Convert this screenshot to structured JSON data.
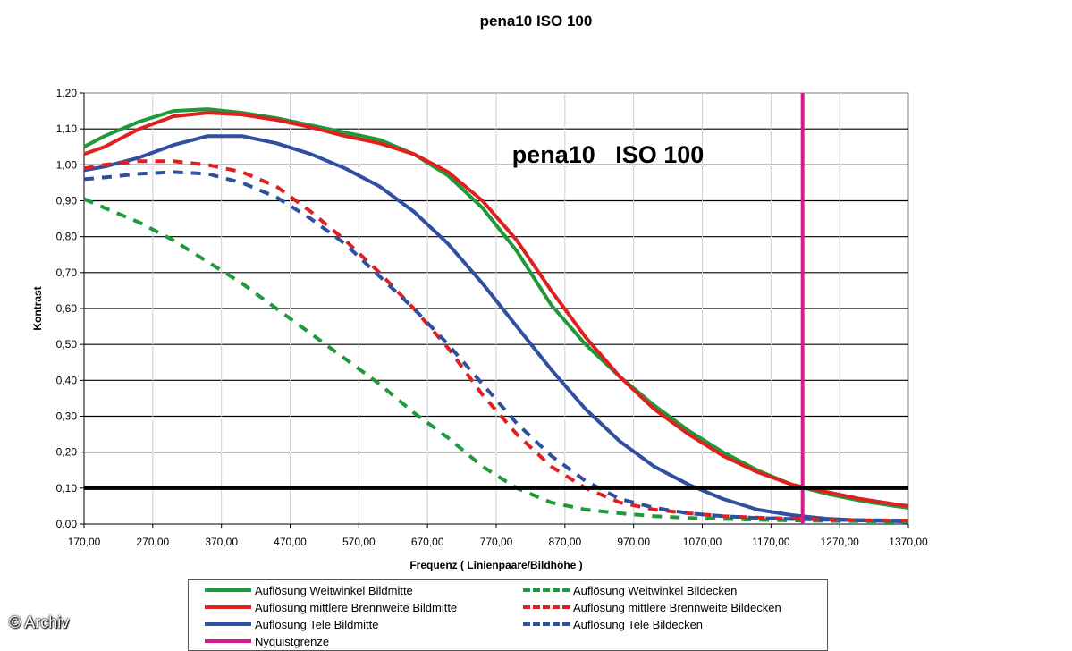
{
  "chart_data": {
    "type": "line",
    "title": "pena10   ISO 100",
    "annotation": "pena10   ISO 100",
    "xlabel": "Frequenz ( Linienpaare/Bildhöhe )",
    "ylabel": "Kontrast",
    "xlim": [
      170,
      1370
    ],
    "ylim": [
      0,
      1.2
    ],
    "xticks": [
      "170,00",
      "270,00",
      "370,00",
      "470,00",
      "570,00",
      "670,00",
      "770,00",
      "870,00",
      "970,00",
      "1070,00",
      "1170,00",
      "1270,00",
      "1370,00"
    ],
    "yticks": [
      "0,00",
      "0,10",
      "0,20",
      "0,30",
      "0,40",
      "0,50",
      "0,60",
      "0,70",
      "0,80",
      "0,90",
      "1,00",
      "1,10",
      "1,20"
    ],
    "grid": true,
    "legend_position": "bottom",
    "reference_line": {
      "y": 0.1,
      "color": "#000000"
    },
    "series": [
      {
        "name": "Auflösung Weitwinkel Bildmitte",
        "color": "#1e9a3a",
        "dash": false,
        "x": [
          170,
          200,
          250,
          300,
          350,
          400,
          450,
          500,
          550,
          600,
          650,
          700,
          750,
          800,
          850,
          900,
          950,
          1000,
          1050,
          1100,
          1150,
          1200,
          1250,
          1300,
          1350,
          1370
        ],
        "y": [
          1.05,
          1.08,
          1.12,
          1.15,
          1.155,
          1.145,
          1.13,
          1.11,
          1.09,
          1.07,
          1.03,
          0.97,
          0.88,
          0.76,
          0.61,
          0.5,
          0.41,
          0.33,
          0.26,
          0.2,
          0.15,
          0.11,
          0.085,
          0.065,
          0.05,
          0.045
        ]
      },
      {
        "name": "Auflösung mittlere Brennweite Bildmitte",
        "color": "#e02020",
        "dash": false,
        "x": [
          170,
          200,
          250,
          300,
          350,
          400,
          450,
          500,
          550,
          600,
          650,
          700,
          750,
          800,
          850,
          900,
          950,
          1000,
          1050,
          1100,
          1150,
          1200,
          1250,
          1300,
          1350,
          1370
        ],
        "y": [
          1.03,
          1.05,
          1.1,
          1.135,
          1.145,
          1.14,
          1.125,
          1.105,
          1.08,
          1.06,
          1.03,
          0.98,
          0.9,
          0.79,
          0.65,
          0.52,
          0.41,
          0.32,
          0.25,
          0.19,
          0.145,
          0.11,
          0.09,
          0.07,
          0.055,
          0.05
        ]
      },
      {
        "name": "Auflösung Tele Bildmitte",
        "color": "#2f4fa0",
        "dash": false,
        "x": [
          170,
          200,
          250,
          300,
          350,
          400,
          450,
          500,
          550,
          600,
          650,
          700,
          750,
          800,
          850,
          900,
          950,
          1000,
          1050,
          1100,
          1150,
          1200,
          1250,
          1300,
          1350,
          1370
        ],
        "y": [
          0.985,
          0.995,
          1.02,
          1.055,
          1.08,
          1.08,
          1.06,
          1.03,
          0.99,
          0.94,
          0.87,
          0.78,
          0.67,
          0.55,
          0.43,
          0.32,
          0.23,
          0.16,
          0.11,
          0.07,
          0.04,
          0.025,
          0.015,
          0.01,
          0.008,
          0.007
        ]
      },
      {
        "name": "Auflösung Weitwinkel Bildecken",
        "color": "#1e9a3a",
        "dash": true,
        "x": [
          170,
          200,
          250,
          300,
          350,
          400,
          450,
          500,
          550,
          600,
          650,
          700,
          750,
          800,
          850,
          900,
          950,
          1000,
          1050,
          1100,
          1150,
          1200,
          1250,
          1300,
          1350,
          1370
        ],
        "y": [
          0.905,
          0.88,
          0.84,
          0.79,
          0.73,
          0.67,
          0.6,
          0.53,
          0.46,
          0.39,
          0.31,
          0.24,
          0.16,
          0.1,
          0.06,
          0.04,
          0.03,
          0.022,
          0.017,
          0.014,
          0.012,
          0.01,
          0.009,
          0.008,
          0.007,
          0.007
        ]
      },
      {
        "name": "Auflösung mittlere Brennweite Bildecken",
        "color": "#e02020",
        "dash": true,
        "x": [
          170,
          200,
          250,
          300,
          350,
          400,
          450,
          500,
          550,
          600,
          650,
          700,
          750,
          800,
          850,
          900,
          950,
          1000,
          1050,
          1100,
          1150,
          1200,
          1250,
          1300,
          1350,
          1370
        ],
        "y": [
          0.99,
          1.0,
          1.01,
          1.01,
          1.0,
          0.98,
          0.94,
          0.87,
          0.79,
          0.7,
          0.6,
          0.49,
          0.36,
          0.25,
          0.16,
          0.1,
          0.06,
          0.04,
          0.03,
          0.022,
          0.018,
          0.015,
          0.013,
          0.011,
          0.01,
          0.01
        ]
      },
      {
        "name": "Auflösung Tele Bildecken",
        "color": "#2f4fa0",
        "dash": true,
        "x": [
          170,
          200,
          250,
          300,
          350,
          400,
          450,
          500,
          550,
          600,
          650,
          700,
          750,
          800,
          850,
          900,
          950,
          1000,
          1050,
          1100,
          1150,
          1200,
          1250,
          1300,
          1350,
          1370
        ],
        "y": [
          0.96,
          0.965,
          0.975,
          0.98,
          0.975,
          0.95,
          0.91,
          0.85,
          0.78,
          0.69,
          0.6,
          0.5,
          0.39,
          0.28,
          0.19,
          0.12,
          0.07,
          0.045,
          0.03,
          0.022,
          0.017,
          0.014,
          0.012,
          0.011,
          0.01,
          0.01
        ]
      },
      {
        "name": "Nyquistgrenze",
        "color": "#d81b8c",
        "dash": false,
        "vertical_x": 1216
      }
    ]
  },
  "watermark": "© Archiv"
}
